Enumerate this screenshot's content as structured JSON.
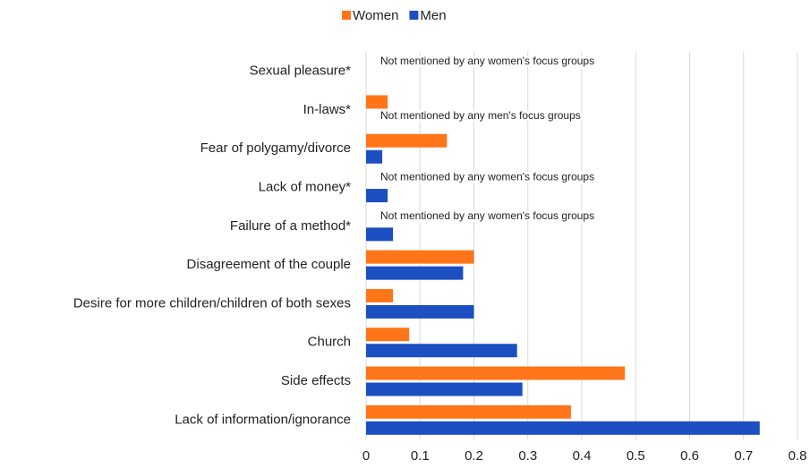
{
  "chart_data": {
    "type": "bar",
    "orientation": "horizontal",
    "categories": [
      "Sexual pleasure*",
      "In-laws*",
      "Fear of polygamy/divorce",
      "Lack of money*",
      "Failure of a method*",
      "Disagreement of the couple",
      "Desire for more children/children of both sexes",
      "Church",
      "Side effects",
      "Lack of information/ignorance"
    ],
    "series": [
      {
        "name": "Women",
        "color": "#ff7518",
        "values": [
          null,
          0.04,
          0.15,
          null,
          null,
          0.2,
          0.05,
          0.08,
          0.48,
          0.38
        ],
        "notes": [
          "Not mentioned by any women's focus groups",
          null,
          null,
          "Not mentioned by any women's focus groups",
          "Not mentioned by any women's focus groups",
          null,
          null,
          null,
          null,
          null
        ]
      },
      {
        "name": "Men",
        "color": "#1c4fc2",
        "values": [
          null,
          null,
          0.03,
          0.04,
          0.05,
          0.18,
          0.2,
          0.28,
          0.29,
          0.73
        ],
        "notes": [
          null,
          "Not mentioned by any men's focus groups",
          null,
          null,
          null,
          null,
          null,
          null,
          null,
          null
        ]
      }
    ],
    "xlim": [
      0,
      0.8
    ],
    "xticks": [
      0,
      0.1,
      0.2,
      0.3,
      0.4,
      0.5,
      0.6,
      0.7,
      0.8
    ],
    "grid": true,
    "legend": "top"
  }
}
